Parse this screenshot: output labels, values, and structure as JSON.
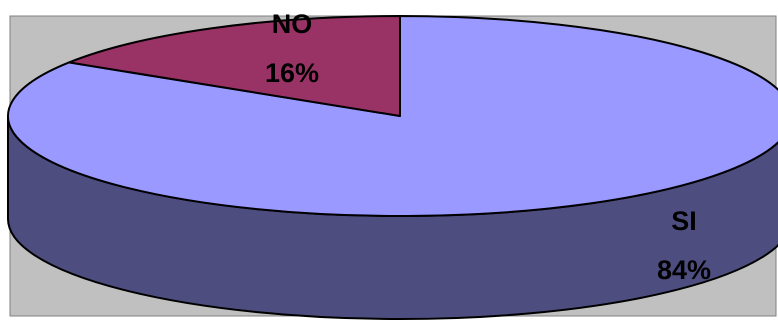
{
  "chart_data": {
    "type": "pie",
    "style": "3d",
    "title": "",
    "slices": [
      {
        "label": "SI",
        "value": 84,
        "value_label": "84%",
        "color": "#9999FF",
        "side_color": "#4D4D80"
      },
      {
        "label": "NO",
        "value": 16,
        "value_label": "16%",
        "color": "#993366",
        "side_color": "#4D1A33"
      }
    ],
    "background_color": "#C0C0C0",
    "legend": "none"
  }
}
